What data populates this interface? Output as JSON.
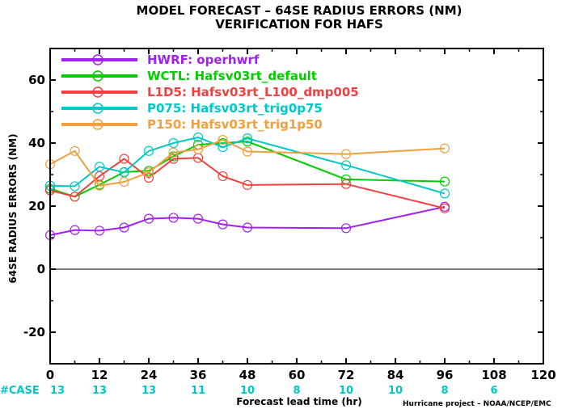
{
  "chart_data": {
    "type": "line",
    "title": "MODEL FORECAST – 64SE RADIUS ERRORS (NM)",
    "subtitle": "VERIFICATION FOR HAFS",
    "xlabel": "Forecast lead time (hr)",
    "ylabel": "64SE RADIUS ERRORS (NM)",
    "xlim": [
      0,
      120
    ],
    "ylim": [
      -30,
      70
    ],
    "xticks": [
      0,
      12,
      24,
      36,
      48,
      60,
      72,
      84,
      96,
      108,
      120
    ],
    "yticks": [
      -20,
      0,
      20,
      40,
      60
    ],
    "reference_line_y": 0,
    "legend_position": "top-left",
    "series": [
      {
        "name": "HWRF: operhwrf",
        "color": "#a020f0",
        "x": [
          0,
          6,
          12,
          18,
          24,
          30,
          36,
          42,
          48,
          72,
          96
        ],
        "y": [
          10.8,
          12.4,
          12.2,
          13.2,
          16.0,
          16.3,
          16.0,
          14.2,
          13.2,
          13.0,
          19.8
        ]
      },
      {
        "name": "WCTL: Hafsv03rt_default",
        "color": "#00cc00",
        "x": [
          0,
          6,
          12,
          18,
          24,
          30,
          36,
          42,
          48,
          72,
          96
        ],
        "y": [
          25.5,
          23.0,
          26.8,
          30.8,
          31.2,
          35.8,
          39.5,
          40.0,
          40.5,
          28.5,
          27.8
        ]
      },
      {
        "name": "L1D5: Hafsv03rt_L100_dmp005",
        "color": "#f04040",
        "x": [
          0,
          6,
          12,
          18,
          24,
          30,
          36,
          42,
          48,
          72,
          96
        ],
        "y": [
          25.0,
          23.0,
          29.5,
          35.0,
          29.0,
          35.0,
          35.3,
          29.5,
          26.7,
          27.0,
          19.3
        ]
      },
      {
        "name": "P075: Hafsv03rt_trig0p75",
        "color": "#00c8c8",
        "x": [
          0,
          6,
          12,
          18,
          24,
          30,
          36,
          42,
          48,
          72,
          96
        ],
        "y": [
          26.5,
          26.3,
          32.5,
          30.7,
          37.5,
          40.0,
          41.8,
          38.7,
          41.5,
          33.0,
          24.0
        ]
      },
      {
        "name": "P150: Hafsv03rt_trig1p50",
        "color": "#f0a040",
        "x": [
          0,
          6,
          12,
          18,
          24,
          30,
          36,
          42,
          48,
          72,
          96
        ],
        "y": [
          33.3,
          37.5,
          26.5,
          27.7,
          30.7,
          37.0,
          38.0,
          41.0,
          37.3,
          36.5,
          38.3
        ]
      }
    ],
    "case_counts": {
      "label": "#CASE",
      "color": "#00c8c8",
      "x": [
        0,
        12,
        24,
        36,
        48,
        60,
        72,
        84,
        96,
        108
      ],
      "values": [
        "13",
        "13",
        "13",
        "11",
        "10",
        "8",
        "10",
        "10",
        "8",
        "6"
      ]
    }
  },
  "credit": "Hurricane project – NOAA/NCEP/EMC"
}
